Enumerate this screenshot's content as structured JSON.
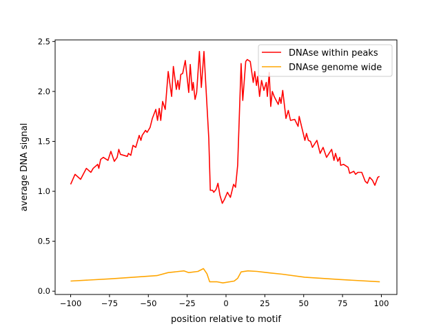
{
  "chart_data": {
    "type": "line",
    "title": "",
    "xlabel": "position relative to motif",
    "ylabel": "average DNA signal",
    "xlim": [
      -110,
      110
    ],
    "ylim": [
      -0.033,
      2.516
    ],
    "xticks": [
      -100,
      -75,
      -50,
      -25,
      0,
      25,
      50,
      75,
      100
    ],
    "xtick_labels": [
      "−100",
      "−75",
      "−50",
      "−25",
      "0",
      "25",
      "50",
      "75",
      "100"
    ],
    "yticks": [
      0.0,
      0.5,
      1.0,
      1.5,
      2.0,
      2.5
    ],
    "ytick_labels": [
      "0.0",
      "0.5",
      "1.0",
      "1.5",
      "2.0",
      "2.5"
    ],
    "grid": false,
    "legend_position": "top-right",
    "series": [
      {
        "name": "DNAse within peaks",
        "color": "#ff0000",
        "x": [
          -100,
          -97.2,
          -93.6,
          -89.9,
          -87,
          -85.5,
          -82.6,
          -81.9,
          -80.7,
          -79,
          -76,
          -74.1,
          -71.9,
          -70.1,
          -69,
          -68,
          -63.5,
          -62.8,
          -61.3,
          -59.9,
          -58.1,
          -55.9,
          -54.8,
          -54,
          -51.8,
          -50.8,
          -48.9,
          -47.4,
          -45.2,
          -44.1,
          -43,
          -42,
          -40.8,
          -39.1,
          -37.2,
          -35,
          -33.9,
          -32,
          -31,
          -30.1,
          -29.1,
          -27.9,
          -26.2,
          -24,
          -23,
          -21.8,
          -21.1,
          -19.9,
          -18.9,
          -17.1,
          -15.9,
          -14.2,
          -11.1,
          -10.1,
          -8.6,
          -7.9,
          -6.4,
          -5.2,
          -3.9,
          -2.4,
          -0.96,
          0.95,
          2.85,
          4.9,
          6.1,
          7.5,
          9.7,
          10.8,
          12.7,
          13.7,
          15.6,
          17.5,
          18.5,
          19.6,
          20.4,
          21.6,
          22.9,
          24.4,
          25.9,
          26.6,
          27.8,
          28.8,
          29.8,
          31,
          33.6,
          34.6,
          35.4,
          36.5,
          38.6,
          40.1,
          41.5,
          44.2,
          46.4,
          47.1,
          48.6,
          50.8,
          51.8,
          53,
          54.4,
          55.6,
          58.5,
          60.6,
          62.5,
          64.7,
          68,
          69.5,
          70.5,
          72,
          73.2,
          73.8,
          75.7,
          78.6,
          79.6,
          82.3,
          83.4,
          84.9,
          87.4,
          89.6,
          91,
          92.5,
          94.3,
          95.8,
          97.7,
          98.8
        ],
        "y": [
          1.07,
          1.17,
          1.12,
          1.23,
          1.19,
          1.23,
          1.27,
          1.23,
          1.32,
          1.34,
          1.31,
          1.4,
          1.3,
          1.34,
          1.42,
          1.37,
          1.35,
          1.38,
          1.36,
          1.46,
          1.44,
          1.56,
          1.51,
          1.56,
          1.61,
          1.59,
          1.64,
          1.73,
          1.82,
          1.71,
          1.83,
          1.71,
          1.9,
          1.82,
          2.2,
          1.95,
          2.25,
          2.02,
          2.11,
          2.02,
          2.17,
          2.18,
          2.31,
          1.99,
          2.27,
          2.01,
          2.09,
          1.92,
          1.99,
          2.4,
          2.04,
          2.4,
          1.53,
          1.01,
          1.01,
          0.99,
          1.02,
          1.08,
          0.96,
          0.88,
          0.92,
          0.99,
          0.94,
          1.07,
          1.04,
          1.26,
          2.28,
          1.91,
          2.3,
          2.32,
          2.3,
          2.09,
          2.2,
          2.06,
          2.15,
          1.95,
          2.11,
          2.01,
          2.09,
          1.95,
          2.19,
          1.85,
          2.0,
          1.95,
          1.87,
          1.94,
          1.88,
          2.01,
          1.73,
          1.81,
          1.71,
          1.72,
          1.65,
          1.75,
          1.65,
          1.51,
          1.58,
          1.51,
          1.5,
          1.44,
          1.51,
          1.38,
          1.44,
          1.34,
          1.42,
          1.31,
          1.38,
          1.3,
          1.34,
          1.26,
          1.27,
          1.24,
          1.18,
          1.2,
          1.17,
          1.19,
          1.19,
          1.1,
          1.08,
          1.14,
          1.11,
          1.06,
          1.14,
          1.15
        ]
      },
      {
        "name": "DNAse genome wide",
        "color": "#ffa500",
        "x": [
          -100,
          -73.8,
          -44.5,
          -37.2,
          -27,
          -24,
          -18.1,
          -14.5,
          -12.3,
          -10.5,
          -5.7,
          -2,
          5.3,
          7.5,
          9.7,
          14.1,
          20,
          28.8,
          36.1,
          50.7,
          72.7,
          99
        ],
        "y": [
          0.101,
          0.124,
          0.156,
          0.186,
          0.203,
          0.186,
          0.198,
          0.226,
          0.175,
          0.094,
          0.094,
          0.083,
          0.101,
          0.129,
          0.193,
          0.203,
          0.198,
          0.182,
          0.17,
          0.14,
          0.117,
          0.094
        ]
      }
    ]
  }
}
